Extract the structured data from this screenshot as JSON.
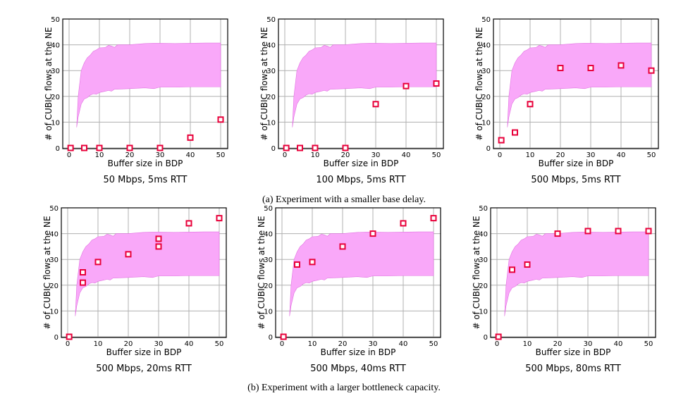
{
  "colors": {
    "band": "#f9a8f9",
    "band_edge": "#e070e0",
    "marker": "#e8003a",
    "grid": "#b0b0b0"
  },
  "captions": [
    "(a) Experiment with a smaller base delay.",
    "(b) Experiment with a larger bottleneck capacity."
  ],
  "shaded_band": {
    "x": [
      2.5,
      3,
      4,
      5,
      6,
      7,
      8,
      9,
      10,
      12,
      13,
      14,
      15,
      16,
      20,
      25,
      28,
      30,
      35,
      40,
      45,
      50
    ],
    "lower": [
      8,
      12,
      17,
      19,
      19.5,
      20.5,
      21,
      20.8,
      21.5,
      22,
      22.3,
      22,
      22.8,
      22.8,
      23,
      23.3,
      23,
      23.6,
      23.6,
      23.7,
      23.7,
      23.7
    ],
    "upper": [
      8,
      20,
      30,
      33,
      35,
      36,
      37.5,
      38,
      38.8,
      39,
      39.8,
      39.5,
      39,
      40,
      40,
      40.5,
      40.6,
      40.6,
      40.5,
      40.6,
      40.7,
      40.7
    ]
  },
  "chart_data": [
    {
      "type": "scatter",
      "subtitle": "50 Mbps, 5ms RTT",
      "xlabel": "Buffer size in BDP",
      "ylabel": "# of CUBIC flows at the NE",
      "xlim": [
        0,
        50
      ],
      "ylim": [
        0,
        50
      ],
      "grid": true,
      "xticks": [
        0,
        10,
        20,
        30,
        40,
        50
      ],
      "yticks": [
        0,
        10,
        20,
        30,
        40,
        50
      ],
      "points": [
        [
          0.5,
          0
        ],
        [
          5,
          0
        ],
        [
          10,
          0
        ],
        [
          20,
          0
        ],
        [
          30,
          0
        ],
        [
          40,
          4
        ],
        [
          50,
          11
        ]
      ]
    },
    {
      "type": "scatter",
      "subtitle": "100 Mbps, 5ms RTT",
      "xlabel": "Buffer size in BDP",
      "ylabel": "# of CUBIC flows at the NE",
      "xlim": [
        0,
        50
      ],
      "ylim": [
        0,
        50
      ],
      "grid": true,
      "xticks": [
        0,
        10,
        20,
        30,
        40,
        50
      ],
      "yticks": [
        0,
        10,
        20,
        30,
        40,
        50
      ],
      "points": [
        [
          0.5,
          0
        ],
        [
          5,
          0
        ],
        [
          10,
          0
        ],
        [
          20,
          0
        ],
        [
          30,
          17
        ],
        [
          40,
          24
        ],
        [
          50,
          25
        ]
      ]
    },
    {
      "type": "scatter",
      "subtitle": "500 Mbps, 5ms RTT",
      "xlabel": "Buffer size in BDP",
      "ylabel": "# of CUBIC flows at the NE",
      "xlim": [
        0,
        50
      ],
      "ylim": [
        0,
        50
      ],
      "grid": true,
      "xticks": [
        0,
        10,
        20,
        30,
        40,
        50
      ],
      "yticks": [
        0,
        10,
        20,
        30,
        40,
        50
      ],
      "points": [
        [
          0.5,
          3
        ],
        [
          5,
          6
        ],
        [
          10,
          17
        ],
        [
          20,
          31
        ],
        [
          30,
          31
        ],
        [
          40,
          32
        ],
        [
          50,
          30
        ]
      ]
    },
    {
      "type": "scatter",
      "subtitle": "500 Mbps, 20ms RTT",
      "xlabel": "Buffer size in BDP",
      "ylabel": "# of CUBIC flows at the NE",
      "xlim": [
        0,
        50
      ],
      "ylim": [
        0,
        50
      ],
      "grid": true,
      "xticks": [
        0,
        10,
        20,
        30,
        40,
        50
      ],
      "yticks": [
        0,
        10,
        20,
        30,
        40,
        50
      ],
      "points": [
        [
          0.5,
          0
        ],
        [
          5,
          25
        ],
        [
          5,
          21
        ],
        [
          10,
          29
        ],
        [
          20,
          32
        ],
        [
          30,
          38
        ],
        [
          30,
          35
        ],
        [
          40,
          44
        ],
        [
          50,
          46
        ]
      ]
    },
    {
      "type": "scatter",
      "subtitle": "500 Mbps, 40ms RTT",
      "xlabel": "Buffer size in BDP",
      "ylabel": "# of CUBIC flows at the NE",
      "xlim": [
        0,
        50
      ],
      "ylim": [
        0,
        50
      ],
      "grid": true,
      "xticks": [
        0,
        10,
        20,
        30,
        40,
        50
      ],
      "yticks": [
        0,
        10,
        20,
        30,
        40,
        50
      ],
      "points": [
        [
          0.5,
          0
        ],
        [
          5,
          28
        ],
        [
          10,
          29
        ],
        [
          20,
          35
        ],
        [
          30,
          40
        ],
        [
          40,
          44
        ],
        [
          50,
          46
        ]
      ]
    },
    {
      "type": "scatter",
      "subtitle": "500 Mbps, 80ms RTT",
      "xlabel": "Buffer size in BDP",
      "ylabel": "# of CUBIC flows at the NE",
      "xlim": [
        0,
        50
      ],
      "ylim": [
        0,
        50
      ],
      "grid": true,
      "xticks": [
        0,
        10,
        20,
        30,
        40,
        50
      ],
      "yticks": [
        0,
        10,
        20,
        30,
        40,
        50
      ],
      "points": [
        [
          0.5,
          0
        ],
        [
          5,
          26
        ],
        [
          10,
          28
        ],
        [
          20,
          40
        ],
        [
          30,
          41
        ],
        [
          40,
          41
        ],
        [
          50,
          41
        ]
      ]
    }
  ]
}
